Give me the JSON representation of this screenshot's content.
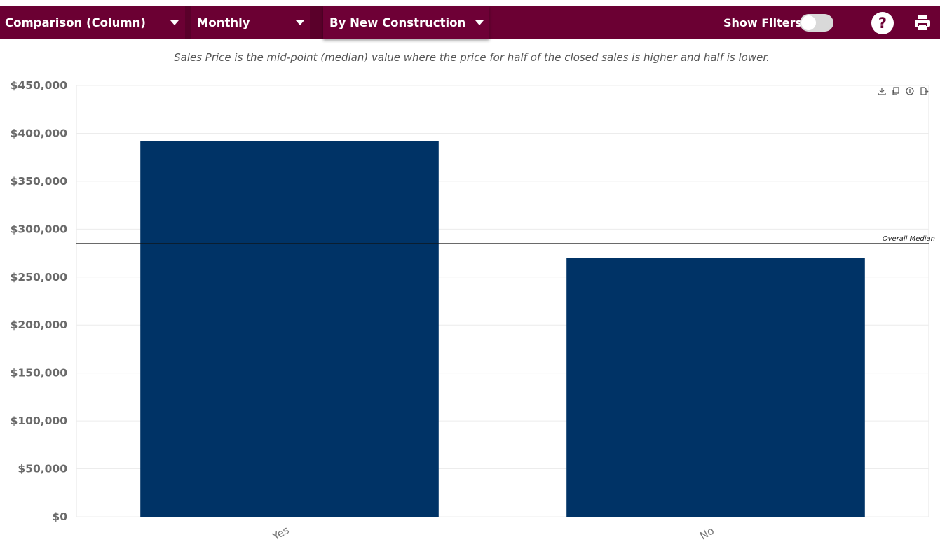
{
  "toolbar": {
    "chart_type": "Comparison (Column)",
    "period": "Monthly",
    "group_by": "By New Construction",
    "show_filters_label": "Show Filters:",
    "show_filters_on": false,
    "help_label": "?",
    "colors": {
      "bar_bg": "#6b0033",
      "text": "#ffffff"
    }
  },
  "subtitle": "Sales Price is the mid-point (median) value where the price for half of the closed sales is higher and half is lower.",
  "chart_tools": [
    "download-icon",
    "copy-icon",
    "info-icon",
    "export-icon"
  ],
  "chart_data": {
    "type": "bar",
    "categories": [
      "Yes",
      "No"
    ],
    "values": [
      392000,
      270000
    ],
    "ylim": [
      0,
      450000
    ],
    "y_ticks": [
      0,
      50000,
      100000,
      150000,
      200000,
      250000,
      300000,
      350000,
      400000,
      450000
    ],
    "y_tick_labels": [
      "$0",
      "$50,000",
      "$100,000",
      "$150,000",
      "$200,000",
      "$250,000",
      "$300,000",
      "$350,000",
      "$400,000",
      "$450,000"
    ],
    "reference_line": {
      "label": "Overall Median",
      "value": 285000
    },
    "bar_color": "#003366",
    "grid": true
  }
}
